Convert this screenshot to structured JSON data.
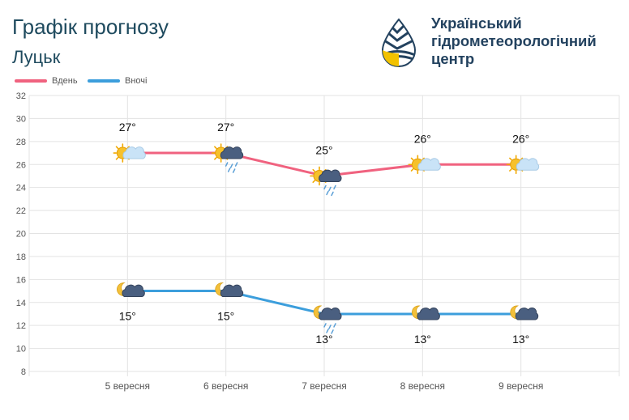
{
  "header": {
    "title": "Графік прогнозу",
    "city": "Луцьк",
    "org_name": [
      "Український",
      "гідрометеорологічний",
      "центр"
    ]
  },
  "colors": {
    "day": "#f0627f",
    "night": "#3c9edc",
    "title": "#1e4a5e",
    "org": "#23425f",
    "grid": "#e3e3e3"
  },
  "chart_data": {
    "type": "line",
    "title": "",
    "categories": [
      "5 вересня",
      "6 вересня",
      "7 вересня",
      "8 вересня",
      "9 вересня"
    ],
    "series": [
      {
        "name": "Вдень",
        "values": [
          27,
          27,
          25,
          26,
          26
        ],
        "labels": [
          "27°",
          "27°",
          "25°",
          "26°",
          "26°"
        ],
        "icons": [
          "sun-partly-cloudy-icon",
          "sun-cloud-rain-icon",
          "sun-cloud-rain-icon",
          "sun-cloudy-icon",
          "sun-cloudy-icon"
        ]
      },
      {
        "name": "Вночі",
        "values": [
          15,
          15,
          13,
          13,
          13
        ],
        "labels": [
          "15°",
          "15°",
          "13°",
          "13°",
          "13°"
        ],
        "icons": [
          "moon-cloud-icon",
          "moon-cloud-icon",
          "moon-cloud-rain-icon",
          "moon-cloud-icon",
          "moon-cloud-icon"
        ]
      }
    ],
    "ylim": [
      8,
      32
    ],
    "yticks": [
      8,
      10,
      12,
      14,
      16,
      18,
      20,
      22,
      24,
      26,
      28,
      30,
      32
    ],
    "grid": true,
    "legend": "top-left"
  }
}
